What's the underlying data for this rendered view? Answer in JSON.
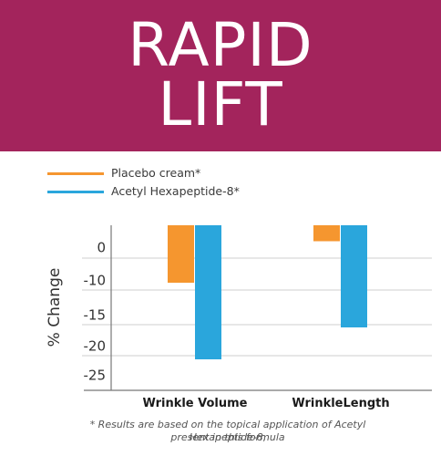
{
  "banner": {
    "line1": "RAPID",
    "line2": "LIFT",
    "background": "#a3245c"
  },
  "chart_data": {
    "type": "bar",
    "categories": [
      "Wrinkle Volume",
      "WrinkleLength"
    ],
    "series": [
      {
        "name": "Placebo cream*",
        "color": "#f5962f",
        "values": [
          -9,
          -2.5
        ]
      },
      {
        "name": "Acetyl Hexapeptide-8*",
        "color": "#2aa6dc",
        "values": [
          -21,
          -16
        ]
      }
    ],
    "ylabel": "% Change",
    "yticks": [
      0,
      -10,
      -15,
      -20,
      -25
    ],
    "ylim": [
      -28,
      4
    ],
    "grid": true,
    "legend": "top-left"
  },
  "footnote": {
    "line1": "* Results are based on the topical application of Acetyl Hexapeptide-8,",
    "line2": "present in this formula"
  }
}
